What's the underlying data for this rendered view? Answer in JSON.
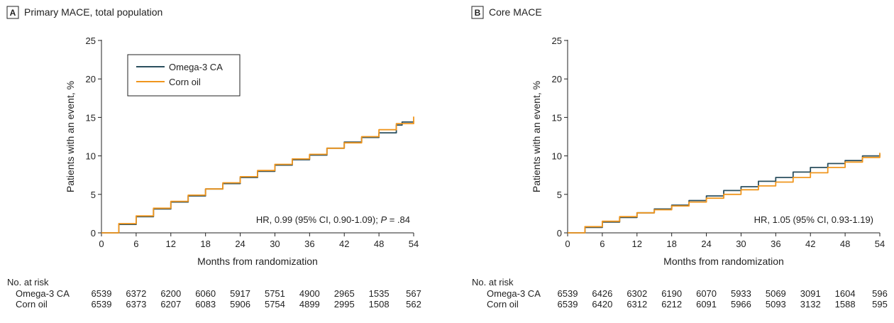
{
  "colors": {
    "omega": "#2b4f5e",
    "corn": "#f0961e",
    "axis": "#222222"
  },
  "chart_data": [
    {
      "panel": "A",
      "type": "line",
      "title": "Primary MACE, total population",
      "xlabel": "Months from randomization",
      "ylabel": "Patients with an event, %",
      "xlim": [
        0,
        54
      ],
      "ylim": [
        0,
        25
      ],
      "xticks": [
        0,
        6,
        12,
        18,
        24,
        30,
        36,
        42,
        48,
        54
      ],
      "yticks": [
        0,
        5,
        10,
        15,
        20,
        25
      ],
      "legend_position": "top-left",
      "annotation": {
        "prefix": "HR, 0.99 (95% CI, 0.90-1.09); ",
        "p_label": "P",
        "p_value": " = .84"
      },
      "series": [
        {
          "name": "Omega-3 CA",
          "color_key": "omega",
          "x": [
            0,
            3,
            6,
            9,
            12,
            15,
            18,
            21,
            24,
            27,
            30,
            33,
            36,
            39,
            42,
            45,
            48,
            51,
            52,
            54
          ],
          "y": [
            0,
            1.1,
            2.1,
            3.1,
            4.0,
            4.8,
            5.7,
            6.4,
            7.2,
            8.0,
            8.8,
            9.5,
            10.1,
            11.0,
            11.8,
            12.4,
            13.0,
            14.0,
            14.4,
            14.5
          ]
        },
        {
          "name": "Corn oil",
          "color_key": "corn",
          "x": [
            0,
            3,
            6,
            9,
            12,
            15,
            18,
            21,
            24,
            27,
            30,
            33,
            36,
            39,
            42,
            45,
            48,
            51,
            54
          ],
          "y": [
            0,
            1.2,
            2.2,
            3.2,
            4.1,
            4.9,
            5.7,
            6.5,
            7.3,
            8.1,
            8.9,
            9.6,
            10.2,
            11.0,
            11.7,
            12.5,
            13.4,
            14.2,
            15.1
          ]
        }
      ],
      "at_risk": {
        "header": "No. at risk",
        "rows": [
          {
            "label": "Omega-3 CA",
            "values": [
              "6539",
              "6372",
              "6200",
              "6060",
              "5917",
              "5751",
              "4900",
              "2965",
              "1535",
              "567"
            ]
          },
          {
            "label": "Corn oil",
            "values": [
              "6539",
              "6373",
              "6207",
              "6083",
              "5906",
              "5754",
              "4899",
              "2995",
              "1508",
              "562"
            ]
          }
        ]
      }
    },
    {
      "panel": "B",
      "type": "line",
      "title": "Core MACE",
      "xlabel": "Months from randomization",
      "ylabel": "Patients with an event, %",
      "xlim": [
        0,
        54
      ],
      "ylim": [
        0,
        25
      ],
      "xticks": [
        0,
        6,
        12,
        18,
        24,
        30,
        36,
        42,
        48,
        54
      ],
      "yticks": [
        0,
        5,
        10,
        15,
        20,
        25
      ],
      "annotation": {
        "prefix": "HR, 1.05 (95% CI, 0.93-1.19)",
        "p_label": "",
        "p_value": ""
      },
      "series": [
        {
          "name": "Omega-3 CA",
          "color_key": "omega",
          "x": [
            0,
            3,
            6,
            9,
            12,
            15,
            18,
            21,
            24,
            27,
            30,
            33,
            36,
            39,
            42,
            45,
            48,
            51,
            54
          ],
          "y": [
            0,
            0.7,
            1.4,
            2.0,
            2.6,
            3.1,
            3.6,
            4.2,
            4.8,
            5.5,
            6.0,
            6.7,
            7.2,
            7.9,
            8.5,
            9.0,
            9.4,
            10.0,
            10.2
          ]
        },
        {
          "name": "Corn oil",
          "color_key": "corn",
          "x": [
            0,
            3,
            6,
            9,
            12,
            15,
            18,
            21,
            24,
            27,
            30,
            33,
            36,
            39,
            42,
            45,
            48,
            51,
            54
          ],
          "y": [
            0,
            0.8,
            1.5,
            2.1,
            2.6,
            3.0,
            3.5,
            4.0,
            4.5,
            5.0,
            5.6,
            6.1,
            6.6,
            7.2,
            7.8,
            8.5,
            9.2,
            9.8,
            10.4
          ]
        }
      ],
      "at_risk": {
        "header": "No. at risk",
        "rows": [
          {
            "label": "Omega-3 CA",
            "values": [
              "6539",
              "6426",
              "6302",
              "6190",
              "6070",
              "5933",
              "5069",
              "3091",
              "1604",
              "596"
            ]
          },
          {
            "label": "Corn oil",
            "values": [
              "6539",
              "6420",
              "6312",
              "6212",
              "6091",
              "5966",
              "5093",
              "3132",
              "1588",
              "595"
            ]
          }
        ]
      }
    }
  ]
}
